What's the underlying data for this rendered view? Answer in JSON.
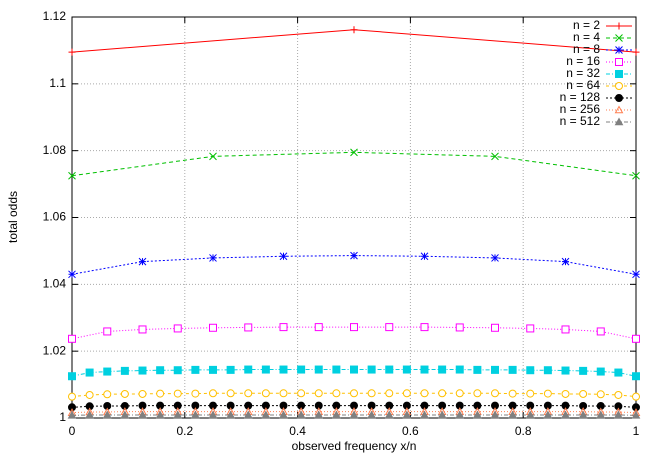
{
  "chart_data": {
    "type": "line",
    "xlabel": "observed frequency x/n",
    "ylabel": "total odds",
    "xlim": [
      0,
      1
    ],
    "ylim": [
      1,
      1.12
    ],
    "xticks": [
      0,
      0.2,
      0.4,
      0.6,
      0.8,
      1
    ],
    "yticks": [
      1,
      1.02,
      1.04,
      1.06,
      1.08,
      1.1,
      1.12
    ],
    "grid": true,
    "legend": "top-right",
    "series": [
      {
        "name": "n = 2",
        "color": "#ff0000",
        "marker": "plus",
        "dash": "none",
        "x": [
          0,
          0.5,
          1
        ],
        "values": [
          1.1095,
          1.1162,
          1.1095
        ]
      },
      {
        "name": "n = 4",
        "color": "#00c000",
        "marker": "cross",
        "dash": "4,3",
        "x": [
          0,
          0.25,
          0.5,
          0.75,
          1
        ],
        "values": [
          1.0725,
          1.0783,
          1.0795,
          1.0783,
          1.0725
        ]
      },
      {
        "name": "n = 8",
        "color": "#0000ff",
        "marker": "star",
        "dash": "2,2",
        "x": [
          0,
          0.125,
          0.25,
          0.375,
          0.5,
          0.625,
          0.75,
          0.875,
          1
        ],
        "values": [
          1.043,
          1.0468,
          1.0479,
          1.0484,
          1.0486,
          1.0484,
          1.0479,
          1.0468,
          1.043
        ]
      },
      {
        "name": "n = 16",
        "color": "#ff00ff",
        "marker": "square",
        "dash": "1,2",
        "x": [
          0,
          0.0625,
          0.125,
          0.1875,
          0.25,
          0.3125,
          0.375,
          0.4375,
          0.5,
          0.5625,
          0.625,
          0.6875,
          0.75,
          0.8125,
          0.875,
          0.9375,
          1
        ],
        "values": [
          1.0237,
          1.0259,
          1.0265,
          1.0268,
          1.027,
          1.0271,
          1.0272,
          1.0272,
          1.0272,
          1.0272,
          1.0272,
          1.0271,
          1.027,
          1.0268,
          1.0265,
          1.0259,
          1.0237
        ]
      },
      {
        "name": "n = 32",
        "color": "#00d0e0",
        "marker": "square-filled",
        "dash": "4,2,1,2",
        "x": [
          0,
          0.03125,
          0.0625,
          0.09375,
          0.125,
          0.15625,
          0.1875,
          0.21875,
          0.25,
          0.28125,
          0.3125,
          0.34375,
          0.375,
          0.40625,
          0.4375,
          0.46875,
          0.5,
          0.53125,
          0.5625,
          0.59375,
          0.625,
          0.65625,
          0.6875,
          0.71875,
          0.75,
          0.78125,
          0.8125,
          0.84375,
          0.875,
          0.90625,
          0.9375,
          0.96875,
          1
        ],
        "values": [
          1.0125,
          1.0136,
          1.0139,
          1.0141,
          1.0142,
          1.0143,
          1.0143,
          1.0144,
          1.0144,
          1.0144,
          1.0145,
          1.0145,
          1.0145,
          1.0145,
          1.0145,
          1.0145,
          1.0145,
          1.0145,
          1.0145,
          1.0145,
          1.0145,
          1.0145,
          1.0145,
          1.0144,
          1.0144,
          1.0144,
          1.0143,
          1.0143,
          1.0142,
          1.0141,
          1.0139,
          1.0136,
          1.0125
        ]
      },
      {
        "name": "n = 64",
        "color": "#ffc000",
        "marker": "circle",
        "dash": "3,3",
        "x": [
          0,
          0.03125,
          0.0625,
          0.09375,
          0.125,
          0.15625,
          0.1875,
          0.21875,
          0.25,
          0.28125,
          0.3125,
          0.34375,
          0.375,
          0.40625,
          0.4375,
          0.46875,
          0.5,
          0.53125,
          0.5625,
          0.59375,
          0.625,
          0.65625,
          0.6875,
          0.71875,
          0.75,
          0.78125,
          0.8125,
          0.84375,
          0.875,
          0.90625,
          0.9375,
          0.96875,
          1
        ],
        "values": [
          1.0064,
          1.0069,
          1.0071,
          1.0072,
          1.0072,
          1.0073,
          1.0073,
          1.0073,
          1.0074,
          1.0074,
          1.0074,
          1.0074,
          1.0074,
          1.0074,
          1.0074,
          1.0074,
          1.0074,
          1.0074,
          1.0074,
          1.0074,
          1.0074,
          1.0074,
          1.0074,
          1.0074,
          1.0074,
          1.0073,
          1.0073,
          1.0073,
          1.0072,
          1.0072,
          1.0071,
          1.0069,
          1.0064
        ]
      },
      {
        "name": "n = 128",
        "color": "#000000",
        "marker": "circle-filled",
        "dash": "2,2",
        "x": [
          0,
          0.03125,
          0.0625,
          0.09375,
          0.125,
          0.15625,
          0.1875,
          0.21875,
          0.25,
          0.28125,
          0.3125,
          0.34375,
          0.375,
          0.40625,
          0.4375,
          0.46875,
          0.5,
          0.53125,
          0.5625,
          0.59375,
          0.625,
          0.65625,
          0.6875,
          0.71875,
          0.75,
          0.78125,
          0.8125,
          0.84375,
          0.875,
          0.90625,
          0.9375,
          0.96875,
          1
        ],
        "values": [
          1.0032,
          1.0035,
          1.0036,
          1.0036,
          1.0037,
          1.0037,
          1.0037,
          1.0037,
          1.0037,
          1.0037,
          1.0037,
          1.0037,
          1.0037,
          1.0037,
          1.0037,
          1.0037,
          1.0037,
          1.0037,
          1.0037,
          1.0037,
          1.0037,
          1.0037,
          1.0037,
          1.0037,
          1.0037,
          1.0037,
          1.0037,
          1.0037,
          1.0037,
          1.0036,
          1.0036,
          1.0035,
          1.0032
        ]
      },
      {
        "name": "n = 256",
        "color": "#ff7f50",
        "marker": "triangle",
        "dash": "1,2",
        "x": [
          0,
          0.03125,
          0.0625,
          0.09375,
          0.125,
          0.15625,
          0.1875,
          0.21875,
          0.25,
          0.28125,
          0.3125,
          0.34375,
          0.375,
          0.40625,
          0.4375,
          0.46875,
          0.5,
          0.53125,
          0.5625,
          0.59375,
          0.625,
          0.65625,
          0.6875,
          0.71875,
          0.75,
          0.78125,
          0.8125,
          0.84375,
          0.875,
          0.90625,
          0.9375,
          0.96875,
          1
        ],
        "values": [
          1.0016,
          1.0018,
          1.0018,
          1.0019,
          1.0019,
          1.0019,
          1.0019,
          1.0019,
          1.0019,
          1.0019,
          1.0019,
          1.0019,
          1.0019,
          1.0019,
          1.0019,
          1.0019,
          1.0019,
          1.0019,
          1.0019,
          1.0019,
          1.0019,
          1.0019,
          1.0019,
          1.0019,
          1.0019,
          1.0019,
          1.0019,
          1.0019,
          1.0019,
          1.0019,
          1.0018,
          1.0018,
          1.0016
        ]
      },
      {
        "name": "n = 512",
        "color": "#808080",
        "marker": "triangle-filled",
        "dash": "4,2,1,2",
        "x": [
          0,
          0.03125,
          0.0625,
          0.09375,
          0.125,
          0.15625,
          0.1875,
          0.21875,
          0.25,
          0.28125,
          0.3125,
          0.34375,
          0.375,
          0.40625,
          0.4375,
          0.46875,
          0.5,
          0.53125,
          0.5625,
          0.59375,
          0.625,
          0.65625,
          0.6875,
          0.71875,
          0.75,
          0.78125,
          0.8125,
          0.84375,
          0.875,
          0.90625,
          0.9375,
          0.96875,
          1
        ],
        "values": [
          1.0008,
          1.0009,
          1.0009,
          1.0009,
          1.0009,
          1.0009,
          1.0009,
          1.0009,
          1.0009,
          1.0009,
          1.0009,
          1.0009,
          1.0009,
          1.0009,
          1.0009,
          1.0009,
          1.0009,
          1.0009,
          1.0009,
          1.0009,
          1.0009,
          1.0009,
          1.0009,
          1.0009,
          1.0009,
          1.0009,
          1.0009,
          1.0009,
          1.0009,
          1.0009,
          1.0009,
          1.0009,
          1.0008
        ]
      }
    ]
  }
}
